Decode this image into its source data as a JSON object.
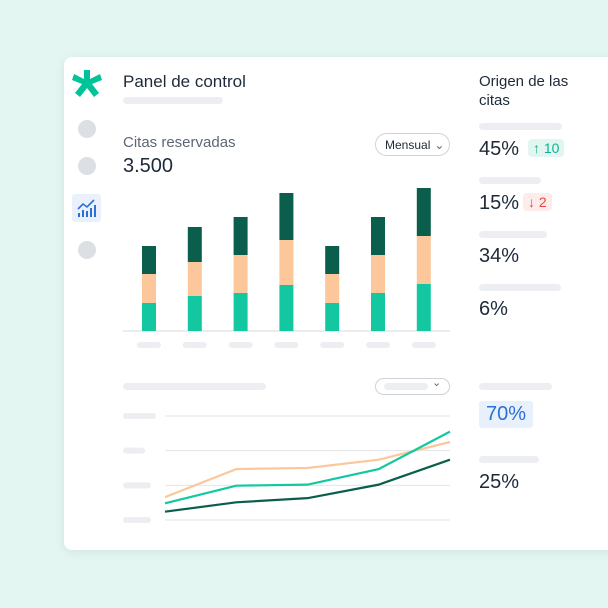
{
  "header": {
    "title": "Panel de control"
  },
  "logo": {
    "icon": "asterisk-logo-icon",
    "color": "#00c39a"
  },
  "sidebar": {
    "items": [
      {
        "icon": "circle-placeholder"
      },
      {
        "icon": "circle-placeholder"
      },
      {
        "icon": "chart-line-icon",
        "active": true
      },
      {
        "icon": "circle-placeholder"
      }
    ]
  },
  "bookings": {
    "label": "Citas reservadas",
    "value": "3.500",
    "period": "Mensual"
  },
  "origin": {
    "title": "Origen de las citas",
    "items": [
      {
        "value": "45%",
        "delta": "10",
        "direction": "up"
      },
      {
        "value": "15%",
        "delta": "2",
        "direction": "down"
      },
      {
        "value": "34%"
      },
      {
        "value": "6%"
      }
    ]
  },
  "secondary": {
    "highlight": "70%",
    "value": "25%"
  },
  "colors": {
    "dark": "#0b5e4c",
    "peach": "#fbc79b",
    "teal": "#13c8a0",
    "up": "#13b08d",
    "down": "#e8483f",
    "accent": "#2c6fd6"
  },
  "chart_data": [
    {
      "type": "bar",
      "stacked": true,
      "series": [
        {
          "color": "#13c8a0",
          "values": [
            28,
            35,
            38,
            46,
            28,
            38,
            47
          ]
        },
        {
          "color": "#fbc79b",
          "values": [
            29,
            34,
            38,
            45,
            29,
            38,
            48
          ]
        },
        {
          "color": "#0b5e4c",
          "values": [
            28,
            35,
            38,
            47,
            28,
            38,
            48
          ]
        }
      ],
      "ylim": [
        0,
        145
      ]
    },
    {
      "type": "line",
      "ylim": [
        0,
        100
      ],
      "grid": true,
      "series": [
        {
          "color": "#fbc79b",
          "values": [
            22,
            49,
            50,
            58,
            75
          ]
        },
        {
          "color": "#13c8a0",
          "values": [
            16,
            33,
            34,
            49,
            85
          ]
        },
        {
          "color": "#0b5e4c",
          "values": [
            8,
            17,
            21,
            34,
            58
          ]
        }
      ]
    }
  ]
}
